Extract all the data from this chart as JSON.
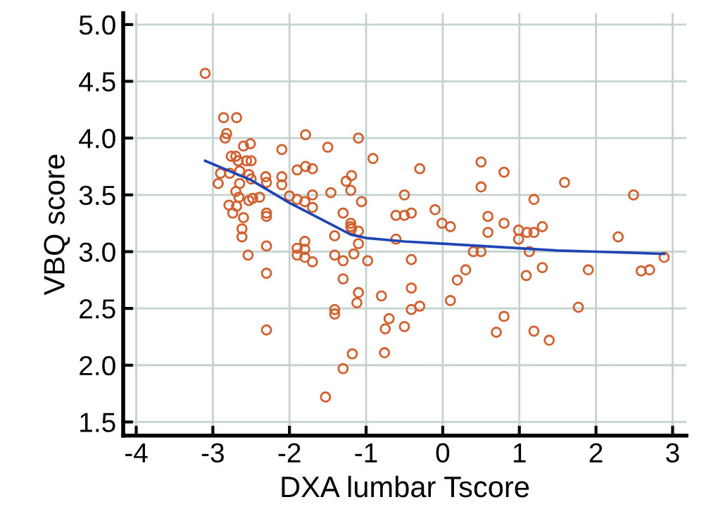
{
  "chart_data": {
    "type": "scatter",
    "xlabel": "DXA lumbar Tscore",
    "ylabel": "VBQ score",
    "xlim": [
      -4.17,
      3.18
    ],
    "ylim": [
      1.38,
      5.1
    ],
    "xticks": [
      -4,
      -3,
      -2,
      -1,
      0,
      1,
      2,
      3
    ],
    "yticks": [
      {
        "value": 1.5,
        "label": "1.5"
      },
      {
        "value": 2,
        "label": "2.0"
      },
      {
        "value": 2.5,
        "label": "2.5"
      },
      {
        "value": 3,
        "label": "3.0"
      },
      {
        "value": 3.5,
        "label": "3.5"
      },
      {
        "value": 4,
        "label": "4.0"
      },
      {
        "value": 4.5,
        "label": "4.5"
      },
      {
        "value": 5,
        "label": "5.0"
      }
    ],
    "grid": true,
    "series": [
      {
        "marker": "circle",
        "color": "#d2602e",
        "x": [
          -3.1,
          -2.86,
          -2.69,
          -2.82,
          -2.84,
          -1.79,
          -1.1,
          -2.51,
          -2.6,
          -2.1,
          -1.5,
          -0.91,
          -2.76,
          -2.7,
          -2.67,
          -2.5,
          -2.56,
          -2.9,
          -2.78,
          -2.65,
          -2.53,
          -2.93,
          -2.65,
          -2.5,
          -2.31,
          -2.3,
          -2.1,
          -2.1,
          -1.9,
          -1.79,
          -1.7,
          -1.19,
          -1.26,
          -1.2,
          -1.46,
          -1.7,
          -2.0,
          -2.7,
          -2.66,
          -2.53,
          -2.48,
          -2.39,
          -1.9,
          -1.8,
          -1.06,
          -2.79,
          -2.69,
          -2.74,
          -2.6,
          -2.3,
          -2.3,
          -1.7,
          -1.3,
          -1.2,
          -1.2,
          -1.19,
          -1.1,
          -2.62,
          -2.62,
          -2.54,
          -2.3,
          -1.9,
          -1.9,
          -1.8,
          -1.8,
          -1.8,
          -1.7,
          -1.41,
          -1.41,
          -1.3,
          -1.16,
          -1.1,
          -0.98,
          -2.3,
          -1.3,
          -1.1,
          -1.12,
          -1.41,
          -1.41,
          -2.3,
          -1.18,
          -1.3,
          -1.53,
          -0.8,
          -0.7,
          -0.75,
          -0.76,
          -0.5,
          -0.41,
          -0.41,
          -0.3,
          -0.41,
          -0.61,
          -0.61,
          -0.5,
          -0.41,
          -0.5,
          -0.3,
          -0.1,
          -0.01,
          0.1,
          0.1,
          0.19,
          0.3,
          0.4,
          0.5,
          0.5,
          0.5,
          0.59,
          0.59,
          0.8,
          0.8,
          0.8,
          0.7,
          0.99,
          0.99,
          1.1,
          1.19,
          1.19,
          1.3,
          1.13,
          1.09,
          1.3,
          1.19,
          1.39,
          1.59,
          1.77,
          1.9,
          2.29,
          2.49,
          2.59,
          2.7,
          2.89
        ],
        "values": [
          4.57,
          4.18,
          4.18,
          4.04,
          4.0,
          4.03,
          4.0,
          3.95,
          3.93,
          3.9,
          3.92,
          3.82,
          3.84,
          3.84,
          3.8,
          3.8,
          3.8,
          3.69,
          3.69,
          3.71,
          3.68,
          3.6,
          3.6,
          3.64,
          3.66,
          3.61,
          3.66,
          3.59,
          3.72,
          3.75,
          3.73,
          3.67,
          3.62,
          3.54,
          3.52,
          3.5,
          3.49,
          3.53,
          3.48,
          3.45,
          3.47,
          3.48,
          3.46,
          3.44,
          3.44,
          3.41,
          3.4,
          3.34,
          3.3,
          3.34,
          3.31,
          3.39,
          3.34,
          3.25,
          3.22,
          3.2,
          3.18,
          3.2,
          3.13,
          2.97,
          3.05,
          3.03,
          2.97,
          3.09,
          3.02,
          2.95,
          2.91,
          3.14,
          2.97,
          2.92,
          2.98,
          3.07,
          2.92,
          2.81,
          2.76,
          2.64,
          2.55,
          2.49,
          2.45,
          2.31,
          2.1,
          1.97,
          1.72,
          2.61,
          2.41,
          2.32,
          2.11,
          2.34,
          2.68,
          2.49,
          2.52,
          2.93,
          3.11,
          3.32,
          3.32,
          3.34,
          3.5,
          3.73,
          3.37,
          3.25,
          3.22,
          2.57,
          2.75,
          2.84,
          3.0,
          3.0,
          3.79,
          3.57,
          3.31,
          3.17,
          3.7,
          3.25,
          2.43,
          2.29,
          3.19,
          3.11,
          3.17,
          3.17,
          3.46,
          3.22,
          3.0,
          2.79,
          2.86,
          2.3,
          2.22,
          3.61,
          2.51,
          2.84,
          3.13,
          3.5,
          2.83,
          2.84,
          2.95
        ]
      },
      {
        "type": "line",
        "marker": "none",
        "line_style": "solid",
        "color": "#1f45b5",
        "x": [
          -3.1,
          -2.5,
          -2.0,
          -1.6,
          -1.4,
          -1.2,
          -1.0,
          -0.5,
          0.0,
          0.5,
          1.0,
          1.5,
          2.0,
          2.5,
          2.89
        ],
        "values": [
          3.8,
          3.63,
          3.43,
          3.29,
          3.22,
          3.15,
          3.12,
          3.09,
          3.07,
          3.05,
          3.03,
          3.01,
          3.0,
          2.99,
          2.98
        ]
      }
    ]
  }
}
